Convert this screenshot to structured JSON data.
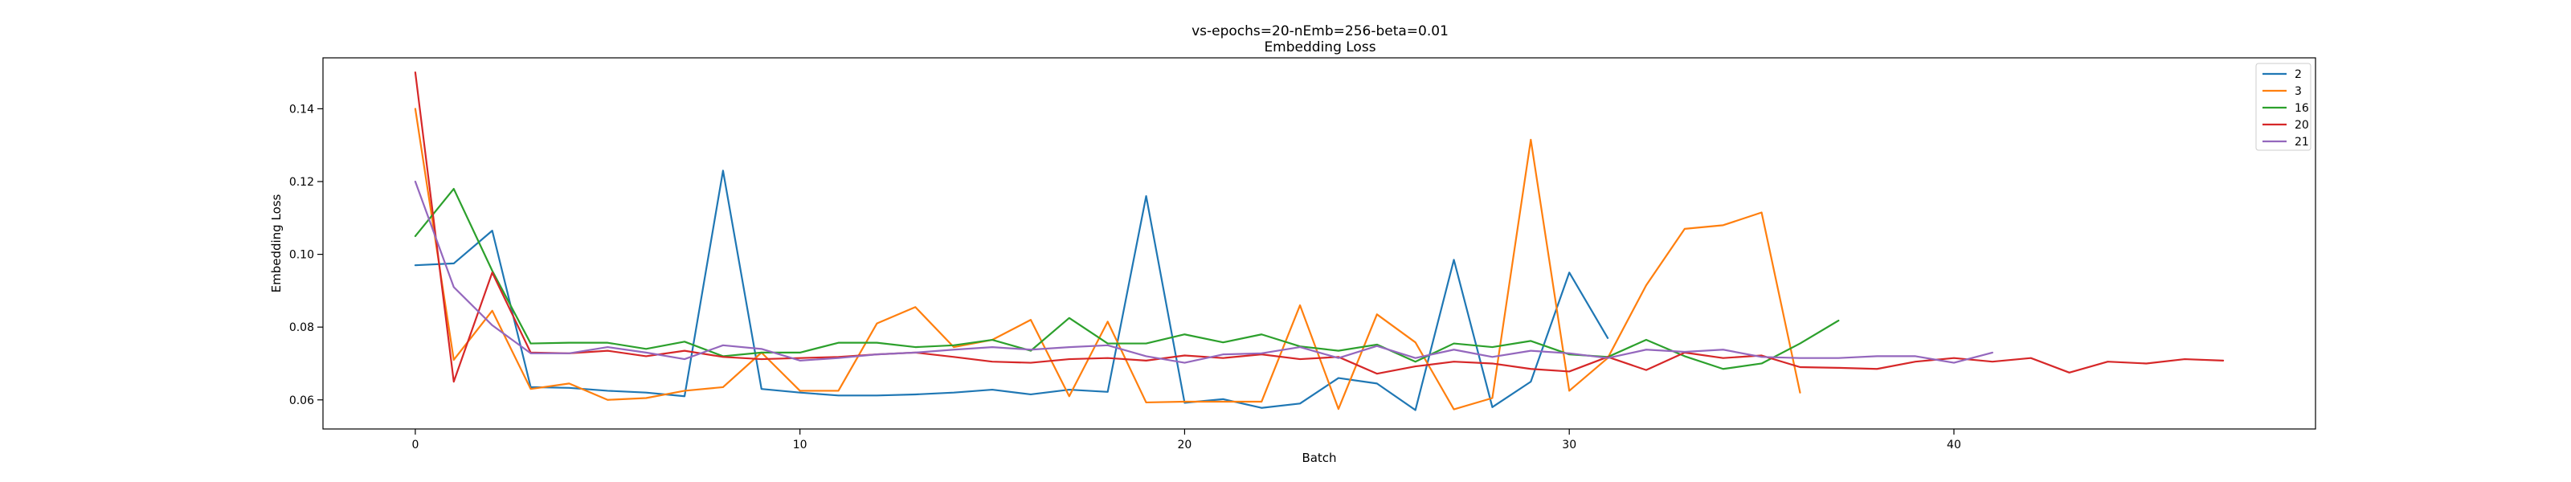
{
  "chart_data": {
    "type": "line",
    "title": "vs-epochs=20-nEmb=256-beta=0.01",
    "subtitle": "Embedding Loss",
    "xlabel": "Batch",
    "ylabel": "Embedding Loss",
    "xlim": [
      -2.4,
      49.4
    ],
    "ylim": [
      0.052,
      0.154
    ],
    "xticks": [
      0,
      10,
      20,
      30,
      40
    ],
    "yticks": [
      0.06,
      0.08,
      0.1,
      0.12,
      0.14
    ],
    "ytick_labels": [
      "0.06",
      "0.08",
      "0.10",
      "0.12",
      "0.14"
    ],
    "grid": false,
    "legend_position": "top-right",
    "series": [
      {
        "name": "2",
        "color": "#1f77b4",
        "values": [
          0.097,
          0.0975,
          0.1065,
          0.0635,
          0.0633,
          0.0625,
          0.062,
          0.061,
          0.123,
          0.063,
          0.062,
          0.0612,
          0.0612,
          0.0615,
          0.062,
          0.0628,
          0.0615,
          0.0628,
          0.0622,
          0.116,
          0.0592,
          0.0602,
          0.0578,
          0.059,
          0.066,
          0.0645,
          0.0572,
          0.0985,
          0.058,
          0.065,
          0.095,
          0.077
        ]
      },
      {
        "name": "3",
        "color": "#ff7f0e",
        "values": [
          0.14,
          0.071,
          0.0845,
          0.063,
          0.0645,
          0.06,
          0.0605,
          0.0625,
          0.0635,
          0.073,
          0.0625,
          0.0625,
          0.081,
          0.0855,
          0.0745,
          0.0765,
          0.082,
          0.061,
          0.0815,
          0.0593,
          0.0595,
          0.0595,
          0.0595,
          0.086,
          0.0575,
          0.0835,
          0.0758,
          0.0574,
          0.0605,
          0.1315,
          0.0625,
          0.0715,
          0.0915,
          0.107,
          0.108,
          0.1115,
          0.062
        ]
      },
      {
        "name": "16",
        "color": "#2ca02c",
        "values": [
          0.105,
          0.118,
          0.0955,
          0.0755,
          0.0757,
          0.0757,
          0.074,
          0.076,
          0.072,
          0.073,
          0.073,
          0.0757,
          0.0757,
          0.0745,
          0.075,
          0.0765,
          0.0735,
          0.0825,
          0.0755,
          0.0755,
          0.078,
          0.0758,
          0.078,
          0.0747,
          0.0735,
          0.0752,
          0.0705,
          0.0755,
          0.0745,
          0.0762,
          0.0725,
          0.0718,
          0.0765,
          0.072,
          0.0685,
          0.07,
          0.0755,
          0.0818
        ]
      },
      {
        "name": "20",
        "color": "#d62728",
        "values": [
          0.15,
          0.065,
          0.095,
          0.073,
          0.0728,
          0.0735,
          0.072,
          0.0735,
          0.0718,
          0.0712,
          0.0715,
          0.0718,
          0.0725,
          0.073,
          0.0718,
          0.0705,
          0.0702,
          0.0712,
          0.0715,
          0.0708,
          0.0722,
          0.0715,
          0.0725,
          0.0712,
          0.0718,
          0.0672,
          0.0692,
          0.0705,
          0.07,
          0.0685,
          0.0678,
          0.0718,
          0.0682,
          0.073,
          0.0715,
          0.0722,
          0.069,
          0.0688,
          0.0685,
          0.0705,
          0.0715,
          0.0705,
          0.0715,
          0.0675,
          0.0705,
          0.07,
          0.0712,
          0.0708
        ]
      },
      {
        "name": "21",
        "color": "#9467bd",
        "values": [
          0.12,
          0.091,
          0.0805,
          0.0728,
          0.0728,
          0.0745,
          0.073,
          0.0712,
          0.075,
          0.074,
          0.0708,
          0.0715,
          0.0725,
          0.073,
          0.0738,
          0.0745,
          0.0738,
          0.0745,
          0.075,
          0.072,
          0.0702,
          0.0725,
          0.0728,
          0.0745,
          0.0715,
          0.0748,
          0.0715,
          0.0738,
          0.0718,
          0.0735,
          0.0728,
          0.0715,
          0.0738,
          0.0732,
          0.0738,
          0.0718,
          0.0715,
          0.0715,
          0.072,
          0.072,
          0.0702,
          0.073
        ]
      }
    ]
  }
}
